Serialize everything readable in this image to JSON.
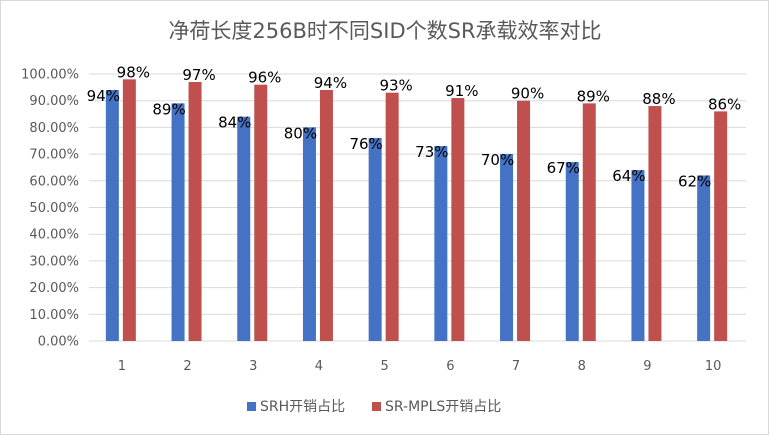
{
  "chart_data": {
    "type": "bar",
    "title": "净荷长度256B时不同SID个数SR承载效率对比",
    "xlabel": "",
    "ylabel": "",
    "categories": [
      "1",
      "2",
      "3",
      "4",
      "5",
      "6",
      "7",
      "8",
      "9",
      "10"
    ],
    "ylim": [
      0,
      1.0
    ],
    "ytick_step": 0.1,
    "yticks": [
      "0.00%",
      "10.00%",
      "20.00%",
      "30.00%",
      "40.00%",
      "50.00%",
      "60.00%",
      "70.00%",
      "80.00%",
      "90.00%",
      "100.00%"
    ],
    "grid": true,
    "legend_position": "bottom",
    "series": [
      {
        "name": "SRH开销占比",
        "color": "#4472c4",
        "values": [
          0.94,
          0.89,
          0.84,
          0.8,
          0.76,
          0.73,
          0.7,
          0.67,
          0.64,
          0.62
        ],
        "labels": [
          "94%",
          "89%",
          "84%",
          "80%",
          "76%",
          "73%",
          "70%",
          "67%",
          "64%",
          "62%"
        ]
      },
      {
        "name": "SR-MPLS开销占比",
        "color": "#c0504d",
        "values": [
          0.98,
          0.97,
          0.96,
          0.94,
          0.93,
          0.91,
          0.9,
          0.89,
          0.88,
          0.86
        ],
        "labels": [
          "98%",
          "97%",
          "96%",
          "94%",
          "93%",
          "91%",
          "90%",
          "89%",
          "88%",
          "86%"
        ]
      }
    ]
  }
}
